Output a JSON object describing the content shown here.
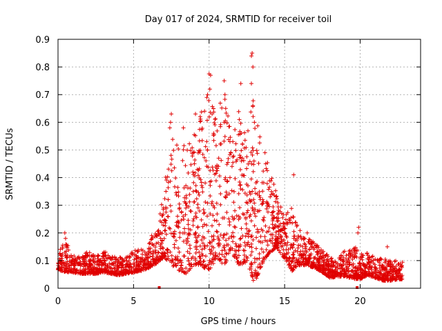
{
  "chart_data": {
    "type": "scatter",
    "title": "Day 017 of 2024, SRMTID for receiver toil",
    "xlabel": "GPS time / hours",
    "ylabel": "SRMTID / TECUs",
    "xlim": [
      0,
      24
    ],
    "ylim": [
      0,
      0.9
    ],
    "x_ticks": [
      0,
      5,
      10,
      15,
      20
    ],
    "x_tick_labels": [
      "0",
      "5",
      "10",
      "15",
      "20"
    ],
    "y_ticks": [
      0,
      0.1,
      0.2,
      0.3,
      0.4,
      0.5,
      0.6,
      0.7,
      0.8,
      0.9
    ],
    "y_tick_labels": [
      "0",
      "0.1",
      "0.2",
      "0.3",
      "0.4",
      "0.5",
      "0.6",
      "0.7",
      "0.8",
      "0.9"
    ],
    "grid": true,
    "marker": "+",
    "color": "#e00000",
    "data_range_hours": [
      0,
      22.8
    ],
    "envelope": {
      "x": [
        0,
        0.5,
        1,
        1.5,
        2,
        2.5,
        3,
        3.5,
        4,
        4.5,
        5,
        5.5,
        6,
        6.5,
        7,
        7.5,
        8,
        8.5,
        9,
        9.5,
        10,
        10.5,
        11,
        11.5,
        12,
        12.5,
        13,
        13.5,
        14,
        14.5,
        15,
        15.5,
        16,
        16.5,
        17,
        17.5,
        18,
        18.5,
        19,
        19.5,
        20,
        20.5,
        21,
        21.5,
        22,
        22.5,
        22.8
      ],
      "baseline": [
        0.085,
        0.09,
        0.075,
        0.07,
        0.075,
        0.07,
        0.08,
        0.07,
        0.065,
        0.07,
        0.08,
        0.085,
        0.1,
        0.12,
        0.18,
        0.22,
        0.2,
        0.18,
        0.22,
        0.24,
        0.26,
        0.25,
        0.27,
        0.26,
        0.24,
        0.23,
        0.22,
        0.2,
        0.22,
        0.2,
        0.15,
        0.13,
        0.12,
        0.11,
        0.1,
        0.08,
        0.06,
        0.06,
        0.07,
        0.07,
        0.06,
        0.07,
        0.06,
        0.05,
        0.05,
        0.05,
        0.05
      ],
      "spread": [
        0.04,
        0.07,
        0.04,
        0.04,
        0.05,
        0.04,
        0.05,
        0.04,
        0.04,
        0.04,
        0.05,
        0.05,
        0.06,
        0.07,
        0.15,
        0.3,
        0.3,
        0.28,
        0.3,
        0.35,
        0.45,
        0.3,
        0.42,
        0.3,
        0.35,
        0.3,
        0.45,
        0.25,
        0.2,
        0.12,
        0.1,
        0.15,
        0.08,
        0.06,
        0.06,
        0.05,
        0.05,
        0.04,
        0.06,
        0.08,
        0.06,
        0.05,
        0.05,
        0.05,
        0.05,
        0.04,
        0.04
      ]
    },
    "peaks": [
      {
        "x": 12.85,
        "y": 0.85
      },
      {
        "x": 12.8,
        "y": 0.84
      },
      {
        "x": 12.9,
        "y": 0.8
      },
      {
        "x": 10.0,
        "y": 0.775
      },
      {
        "x": 10.1,
        "y": 0.77
      },
      {
        "x": 10.05,
        "y": 0.72
      },
      {
        "x": 11.0,
        "y": 0.75
      },
      {
        "x": 11.05,
        "y": 0.7
      },
      {
        "x": 12.1,
        "y": 0.74
      },
      {
        "x": 12.8,
        "y": 0.74
      },
      {
        "x": 9.9,
        "y": 0.7
      },
      {
        "x": 10.2,
        "y": 0.63
      },
      {
        "x": 7.5,
        "y": 0.63
      },
      {
        "x": 7.45,
        "y": 0.6
      },
      {
        "x": 9.1,
        "y": 0.63
      },
      {
        "x": 9.7,
        "y": 0.64
      },
      {
        "x": 11.1,
        "y": 0.65
      },
      {
        "x": 11.0,
        "y": 0.6
      },
      {
        "x": 12.0,
        "y": 0.61
      },
      {
        "x": 12.9,
        "y": 0.66
      },
      {
        "x": 13.0,
        "y": 0.6
      },
      {
        "x": 8.3,
        "y": 0.58
      },
      {
        "x": 7.4,
        "y": 0.58
      },
      {
        "x": 10.3,
        "y": 0.56
      },
      {
        "x": 13.7,
        "y": 0.49
      },
      {
        "x": 13.75,
        "y": 0.45
      },
      {
        "x": 15.6,
        "y": 0.41
      },
      {
        "x": 0.45,
        "y": 0.2
      },
      {
        "x": 0.5,
        "y": 0.18
      },
      {
        "x": 16.5,
        "y": 0.2
      },
      {
        "x": 19.9,
        "y": 0.22
      },
      {
        "x": 19.85,
        "y": 0.2
      },
      {
        "x": 21.8,
        "y": 0.15
      },
      {
        "x": 6.2,
        "y": 0.19
      }
    ],
    "zero_markers": [
      {
        "x": 6.7,
        "y": 0.0
      },
      {
        "x": 19.8,
        "y": 0.0
      }
    ]
  }
}
